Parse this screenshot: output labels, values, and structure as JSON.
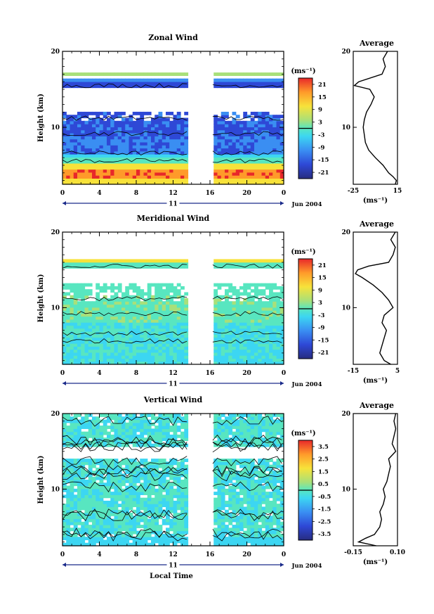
{
  "figure": {
    "xlabel": "Local Time",
    "date_label": "Jun 2004",
    "day_label": "11",
    "unit_label": "(ms⁻¹)",
    "average_title": "Average",
    "height_label": "Height (km)"
  },
  "chart_data": [
    {
      "type": "heatmap",
      "title": "Zonal Wind",
      "ylabel": "Height (km)",
      "xlim": [
        0,
        24
      ],
      "x_ticks": [
        "0",
        "4",
        "8",
        "12",
        "16",
        "20",
        "0"
      ],
      "ylim": [
        2.5,
        20
      ],
      "y_ticks": [
        "10",
        "20"
      ],
      "colorbar": {
        "unit": "(ms⁻¹)",
        "ticks": [
          "21",
          "15",
          "9",
          "3",
          "-3",
          "-9",
          "-15",
          "-21"
        ],
        "range": [
          -24,
          24
        ]
      },
      "data_gaps_hours": [
        [
          13.7,
          16.3
        ]
      ],
      "average_profile": {
        "title": "Average",
        "xlabel": "(ms⁻¹)",
        "xlim": [
          -25,
          15
        ],
        "x_ticks": [
          "-25",
          "15"
        ],
        "y_ticks": [
          "10",
          "20"
        ],
        "height_km": [
          2.5,
          3,
          3.5,
          4,
          5,
          6,
          7,
          8,
          9,
          10,
          11,
          12,
          13,
          14,
          15,
          15.5,
          16,
          17,
          18,
          19,
          20
        ],
        "values": [
          13,
          14,
          11,
          7,
          2,
          -5,
          -11,
          -14,
          -15,
          -16,
          -15,
          -13,
          -9,
          -6,
          -10,
          -24,
          -20,
          1,
          4,
          2,
          6
        ]
      }
    },
    {
      "type": "heatmap",
      "title": "Meridional Wind",
      "ylabel": "Height (km)",
      "xlim": [
        0,
        24
      ],
      "x_ticks": [
        "0",
        "4",
        "8",
        "12",
        "16",
        "20",
        "0"
      ],
      "ylim": [
        2.5,
        20
      ],
      "y_ticks": [
        "10",
        "20"
      ],
      "colorbar": {
        "unit": "(ms⁻¹)",
        "ticks": [
          "21",
          "15",
          "9",
          "3",
          "-3",
          "-9",
          "-15",
          "-21"
        ],
        "range": [
          -24,
          24
        ]
      },
      "data_gaps_hours": [
        [
          13.7,
          16.3
        ]
      ],
      "average_profile": {
        "title": "Average",
        "xlabel": "(ms⁻¹)",
        "xlim": [
          -15,
          5
        ],
        "x_ticks": [
          "-15",
          "5"
        ],
        "y_ticks": [
          "10",
          "20"
        ],
        "height_km": [
          2.5,
          3,
          4,
          5,
          6,
          7,
          8,
          9,
          10,
          11,
          12,
          13,
          14,
          14.5,
          15,
          15.5,
          16,
          17,
          18,
          19,
          20
        ],
        "values": [
          2,
          -1,
          -3,
          -2,
          -1,
          0,
          -2,
          -1,
          3,
          1,
          -2,
          -6,
          -11,
          -14,
          -13,
          -8,
          1,
          3,
          4,
          2,
          4
        ]
      }
    },
    {
      "type": "heatmap",
      "title": "Vertical Wind",
      "ylabel": "Height (km)",
      "xlabel": "Local Time",
      "xlim": [
        0,
        24
      ],
      "x_ticks": [
        "0",
        "4",
        "8",
        "12",
        "16",
        "20",
        "0"
      ],
      "ylim": [
        2.5,
        20
      ],
      "y_ticks": [
        "10",
        "20"
      ],
      "colorbar": {
        "unit": "(ms⁻¹)",
        "ticks": [
          "3.5",
          "2.5",
          "1.5",
          "0.5",
          "-0.5",
          "-1.5",
          "-2.5",
          "-3.5"
        ],
        "range": [
          -4,
          4
        ]
      },
      "data_gaps_hours": [
        [
          13.7,
          16.3
        ]
      ],
      "average_profile": {
        "title": "Average",
        "xlabel": "(ms⁻¹)",
        "xlim": [
          -0.15,
          0.1
        ],
        "x_ticks": [
          "-0.15",
          "0.10"
        ],
        "y_ticks": [
          "10",
          "20"
        ],
        "height_km": [
          2.5,
          3,
          3.5,
          4,
          5,
          6,
          7,
          8,
          9,
          10,
          11,
          12,
          13,
          14,
          15,
          16,
          17,
          18,
          19,
          20
        ],
        "values": [
          -0.02,
          -0.12,
          -0.08,
          -0.03,
          0.0,
          0.01,
          0.0,
          0.02,
          0.03,
          0.02,
          0.04,
          0.05,
          0.06,
          0.05,
          0.09,
          0.07,
          0.08,
          0.09,
          0.08,
          0.09
        ]
      }
    }
  ]
}
